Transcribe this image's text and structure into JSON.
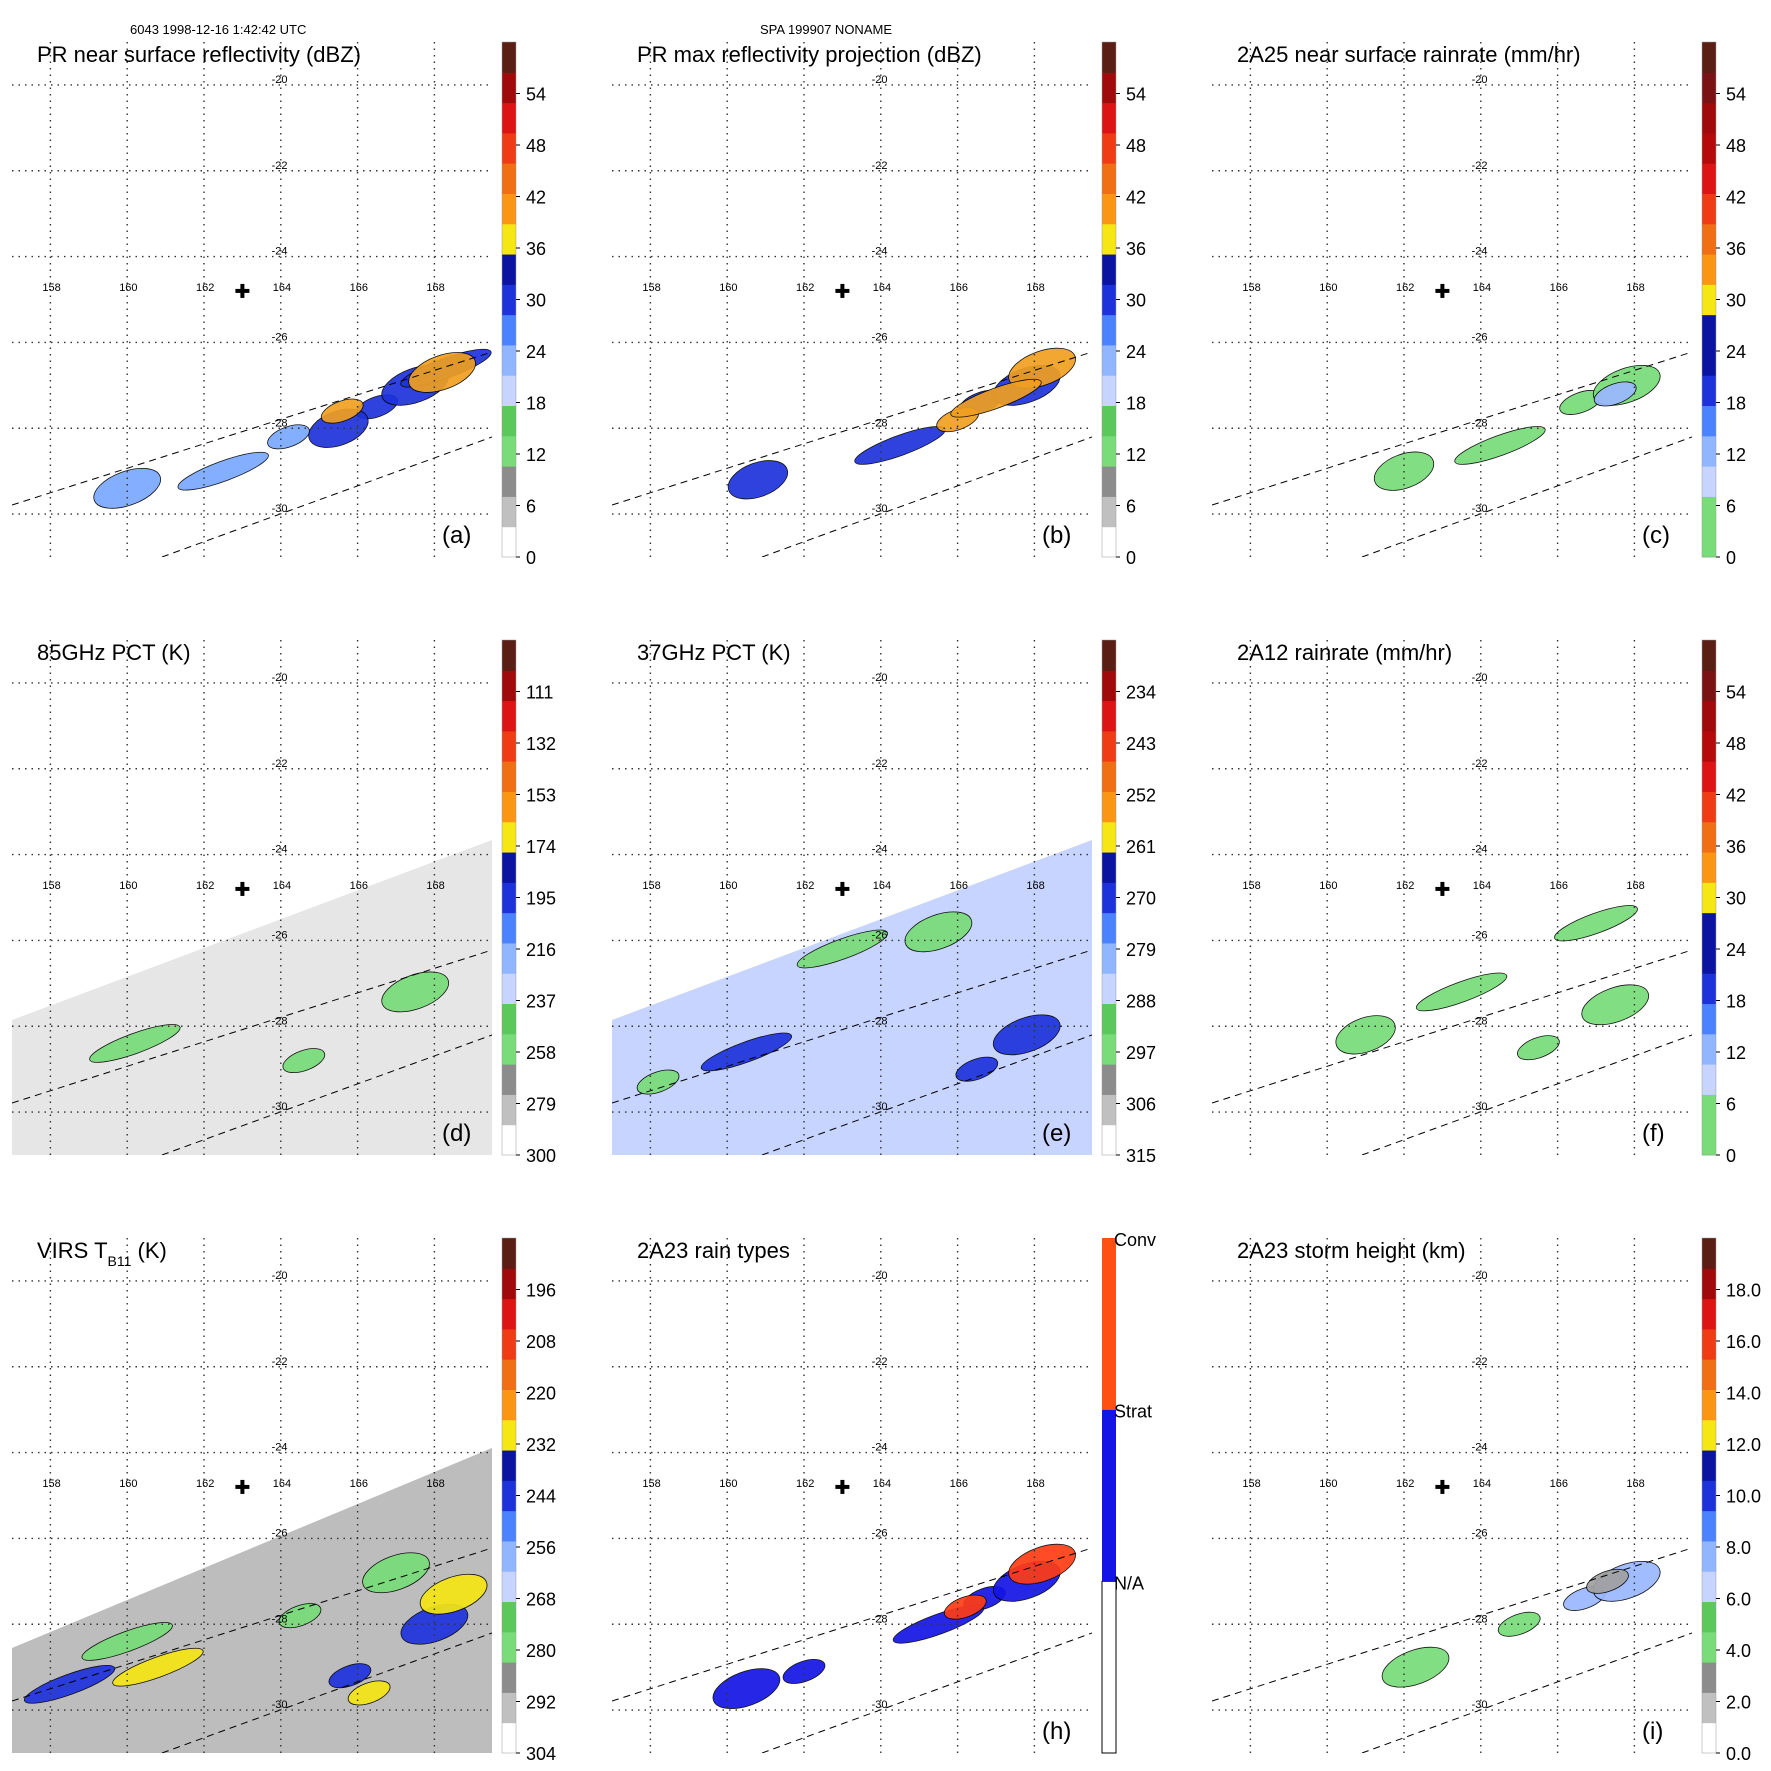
{
  "header": {
    "left": "6043 1998-12-16 1:42:42 UTC",
    "center": "SPA 199907 NONAME"
  },
  "map": {
    "lon_ticks": [
      "158",
      "160",
      "162",
      "164",
      "166",
      "168"
    ],
    "lat_ticks": [
      "-20",
      "-22",
      "-24",
      "-26",
      "-28",
      "-30"
    ],
    "storm_center_marker": "plus-icon"
  },
  "chart_data": [
    {
      "type": "heatmap",
      "id": "a",
      "title": "PR near surface reflectivity (dBZ)",
      "label": "(a)",
      "swath": "pr",
      "colorbar": {
        "ticks": [
          "0",
          "6",
          "12",
          "18",
          "24",
          "30",
          "36",
          "42",
          "48",
          "54"
        ],
        "range": [
          0,
          60
        ]
      },
      "fields": [
        {
          "color": "#1e32dc",
          "blobs": [
            [
              166.5,
              -27.5
            ],
            [
              167.5,
              -27.0
            ],
            [
              168.3,
              -26.6
            ],
            [
              165.5,
              -28.0
            ]
          ]
        },
        {
          "color": "#f0a020",
          "blobs": [
            [
              165.6,
              -27.6
            ],
            [
              168.2,
              -26.7
            ]
          ]
        },
        {
          "color": "#7aa8ff",
          "blobs": [
            [
              164.2,
              -28.2
            ],
            [
              160.0,
              -29.4
            ],
            [
              162.5,
              -29.0
            ]
          ]
        }
      ]
    },
    {
      "type": "heatmap",
      "id": "b",
      "title": "PR max reflectivity projection (dBZ)",
      "label": "(b)",
      "swath": "pr",
      "colorbar": {
        "ticks": [
          "0",
          "6",
          "12",
          "18",
          "24",
          "30",
          "36",
          "42",
          "48",
          "54"
        ],
        "range": [
          0,
          60
        ]
      },
      "fields": [
        {
          "color": "#1e32dc",
          "blobs": [
            [
              166.6,
              -27.4
            ],
            [
              167.8,
              -27.0
            ],
            [
              164.5,
              -28.4
            ],
            [
              160.8,
              -29.2
            ]
          ]
        },
        {
          "color": "#f0a020",
          "blobs": [
            [
              166.0,
              -27.8
            ],
            [
              168.2,
              -26.6
            ],
            [
              167.0,
              -27.3
            ]
          ]
        }
      ]
    },
    {
      "type": "heatmap",
      "id": "c",
      "title": "2A25 near surface rainrate (mm/hr)",
      "label": "(c)",
      "swath": "pr",
      "colorbar": {
        "ticks": [
          "0",
          "6",
          "12",
          "18",
          "24",
          "30",
          "36",
          "42",
          "48",
          "54"
        ],
        "range": [
          0,
          60
        ]
      },
      "fields": [
        {
          "color": "#78dc78",
          "blobs": [
            [
              166.6,
              -27.4
            ],
            [
              167.8,
              -27.0
            ],
            [
              164.5,
              -28.4
            ],
            [
              162.0,
              -29.0
            ]
          ]
        },
        {
          "color": "#9ab8ff",
          "blobs": [
            [
              167.5,
              -27.2
            ]
          ]
        }
      ]
    },
    {
      "type": "heatmap",
      "id": "d",
      "title": "85GHz PCT (K)",
      "label": "(d)",
      "swath": "tmi",
      "colorbar": {
        "ticks": [
          "300",
          "279",
          "258",
          "237",
          "216",
          "195",
          "174",
          "153",
          "132",
          "111"
        ],
        "range": [
          300,
          90
        ]
      },
      "fields": [
        {
          "color": "#78dc78",
          "blobs": [
            [
              164.6,
              -28.8
            ],
            [
              167.5,
              -27.2
            ],
            [
              160.2,
              -28.4
            ]
          ]
        }
      ]
    },
    {
      "type": "heatmap",
      "id": "e",
      "title": "37GHz PCT (K)",
      "label": "(e)",
      "swath": "tmi",
      "colorbar": {
        "ticks": [
          "315",
          "306",
          "297",
          "288",
          "279",
          "270",
          "261",
          "252",
          "243",
          "234"
        ],
        "range": [
          315,
          225
        ]
      },
      "fields": [
        {
          "color": "#1e32dc",
          "blobs": [
            [
              166.5,
              -29.0
            ],
            [
              167.8,
              -28.2
            ],
            [
              160.5,
              -28.6
            ]
          ]
        },
        {
          "color": "#78dc78",
          "blobs": [
            [
              158.2,
              -29.3
            ],
            [
              165.5,
              -25.8
            ],
            [
              163.0,
              -26.2
            ]
          ]
        }
      ]
    },
    {
      "type": "heatmap",
      "id": "f",
      "title": "2A12 rainrate (mm/hr)",
      "label": "(f)",
      "swath": "tmi",
      "colorbar": {
        "ticks": [
          "0",
          "6",
          "12",
          "18",
          "24",
          "30",
          "36",
          "42",
          "48",
          "54"
        ],
        "range": [
          0,
          60
        ]
      },
      "fields": [
        {
          "color": "#78dc78",
          "blobs": [
            [
              165.5,
              -28.5
            ],
            [
              167.5,
              -27.5
            ],
            [
              163.5,
              -27.2
            ],
            [
              161.0,
              -28.2
            ],
            [
              167.0,
              -25.6
            ]
          ]
        }
      ]
    },
    {
      "type": "heatmap",
      "id": "g",
      "title": "VIRS T",
      "title_sub": "B11",
      "title_suffix": " (K)",
      "label": "",
      "swath": "virs",
      "colorbar": {
        "ticks": [
          "304",
          "292",
          "280",
          "268",
          "256",
          "244",
          "232",
          "220",
          "208",
          "196"
        ],
        "range": [
          304,
          184
        ]
      },
      "fields": [
        {
          "color": "#78dc78",
          "blobs": [
            [
              164.5,
              -27.8
            ],
            [
              167.0,
              -26.8
            ],
            [
              160.0,
              -28.4
            ]
          ]
        },
        {
          "color": "#1e32dc",
          "blobs": [
            [
              165.8,
              -29.2
            ],
            [
              168.0,
              -28.0
            ],
            [
              158.5,
              -29.4
            ]
          ]
        },
        {
          "color": "#f5e614",
          "blobs": [
            [
              166.3,
              -29.6
            ],
            [
              168.5,
              -27.3
            ],
            [
              160.8,
              -29.0
            ]
          ]
        }
      ]
    },
    {
      "type": "heatmap",
      "id": "h",
      "title": "2A23 rain types",
      "label": "(h)",
      "swath": "pr",
      "colorbar": {
        "categorical": true,
        "labels": [
          "N/A",
          "Strat",
          "Conv"
        ]
      },
      "fields": [
        {
          "color": "#1414e6",
          "blobs": [
            [
              166.7,
              -27.4
            ],
            [
              167.8,
              -27.0
            ],
            [
              165.5,
              -28.0
            ]
          ]
        },
        {
          "color": "#1414e6",
          "blobs": [
            [
              162.0,
              -29.1
            ],
            [
              160.5,
              -29.5
            ]
          ]
        },
        {
          "color": "#ff3c14",
          "blobs": [
            [
              166.2,
              -27.6
            ],
            [
              168.2,
              -26.6
            ]
          ]
        }
      ]
    },
    {
      "type": "heatmap",
      "id": "i",
      "title": "2A23 storm height (km)",
      "label": "(i)",
      "swath": "pr",
      "colorbar": {
        "ticks": [
          "0.0",
          "2.0",
          "4.0",
          "6.0",
          "8.0",
          "10.0",
          "12.0",
          "14.0",
          "16.0",
          "18.0"
        ],
        "range": [
          0,
          20
        ]
      },
      "fields": [
        {
          "color": "#9ab8ff",
          "blobs": [
            [
              166.7,
              -27.4
            ],
            [
              167.8,
              -27.0
            ]
          ]
        },
        {
          "color": "#78dc78",
          "blobs": [
            [
              165.0,
              -28.0
            ],
            [
              162.3,
              -29.0
            ]
          ]
        },
        {
          "color": "#a0a0a0",
          "blobs": [
            [
              167.3,
              -27.0
            ]
          ]
        }
      ]
    }
  ]
}
